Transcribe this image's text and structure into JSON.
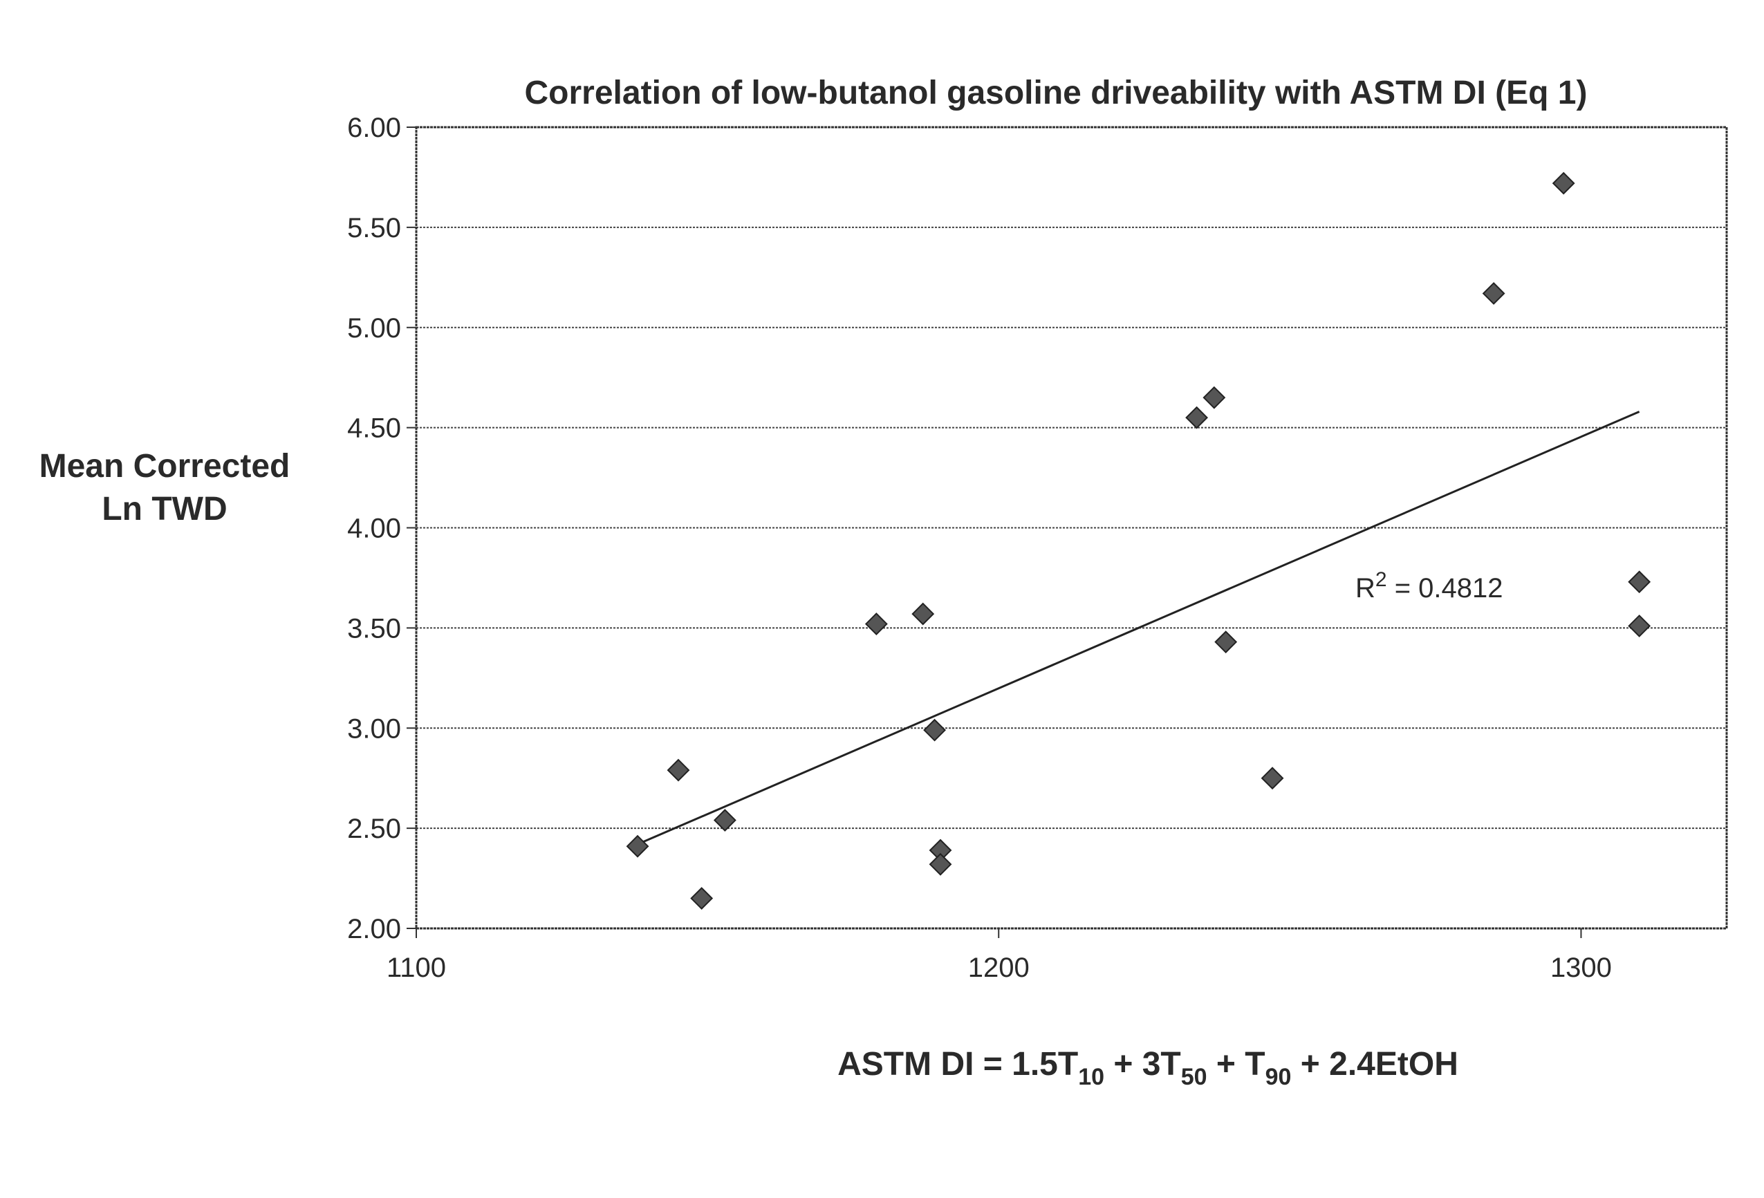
{
  "chart_data": {
    "type": "scatter",
    "title": "Correlation of low-butanol gasoline driveability with ASTM DI (Eq 1)",
    "ylabel_lines": [
      "Mean Corrected",
      "Ln TWD"
    ],
    "xlabel": {
      "parts": [
        {
          "text": "ASTM DI = 1.5T",
          "sub": false
        },
        {
          "text": "10",
          "sub": true
        },
        {
          "text": " + 3T",
          "sub": false
        },
        {
          "text": "50",
          "sub": true
        },
        {
          "text": " + T",
          "sub": false
        },
        {
          "text": "90",
          "sub": true
        },
        {
          "text": " + 2.4EtOH",
          "sub": false
        }
      ]
    },
    "xlim": [
      1100,
      1325
    ],
    "ylim": [
      2.0,
      6.0
    ],
    "xticks": [
      1100,
      1200,
      1300
    ],
    "xtick_labels": [
      "1100",
      "1200",
      "1300"
    ],
    "yticks": [
      2.0,
      2.5,
      3.0,
      3.5,
      4.0,
      4.5,
      5.0,
      5.5,
      6.0
    ],
    "ytick_labels": [
      "2.00",
      "2.50",
      "3.00",
      "3.50",
      "4.00",
      "4.50",
      "5.00",
      "5.50",
      "6.00"
    ],
    "grid": true,
    "points": [
      {
        "x": 1138,
        "y": 2.41
      },
      {
        "x": 1145,
        "y": 2.79
      },
      {
        "x": 1149,
        "y": 2.15
      },
      {
        "x": 1153,
        "y": 2.54
      },
      {
        "x": 1179,
        "y": 3.52
      },
      {
        "x": 1187,
        "y": 3.57
      },
      {
        "x": 1189,
        "y": 2.99
      },
      {
        "x": 1190,
        "y": 2.39
      },
      {
        "x": 1190,
        "y": 2.32
      },
      {
        "x": 1234,
        "y": 4.55
      },
      {
        "x": 1237,
        "y": 4.65
      },
      {
        "x": 1239,
        "y": 3.43
      },
      {
        "x": 1247,
        "y": 2.75
      },
      {
        "x": 1285,
        "y": 5.17
      },
      {
        "x": 1297,
        "y": 5.72
      },
      {
        "x": 1310,
        "y": 3.73
      },
      {
        "x": 1310,
        "y": 3.51
      }
    ],
    "trendline": {
      "x": [
        1138,
        1310
      ],
      "y": [
        2.42,
        4.58
      ]
    },
    "r2_label": {
      "base": "R",
      "sup": "2",
      "rest": " = 0.4812"
    }
  }
}
